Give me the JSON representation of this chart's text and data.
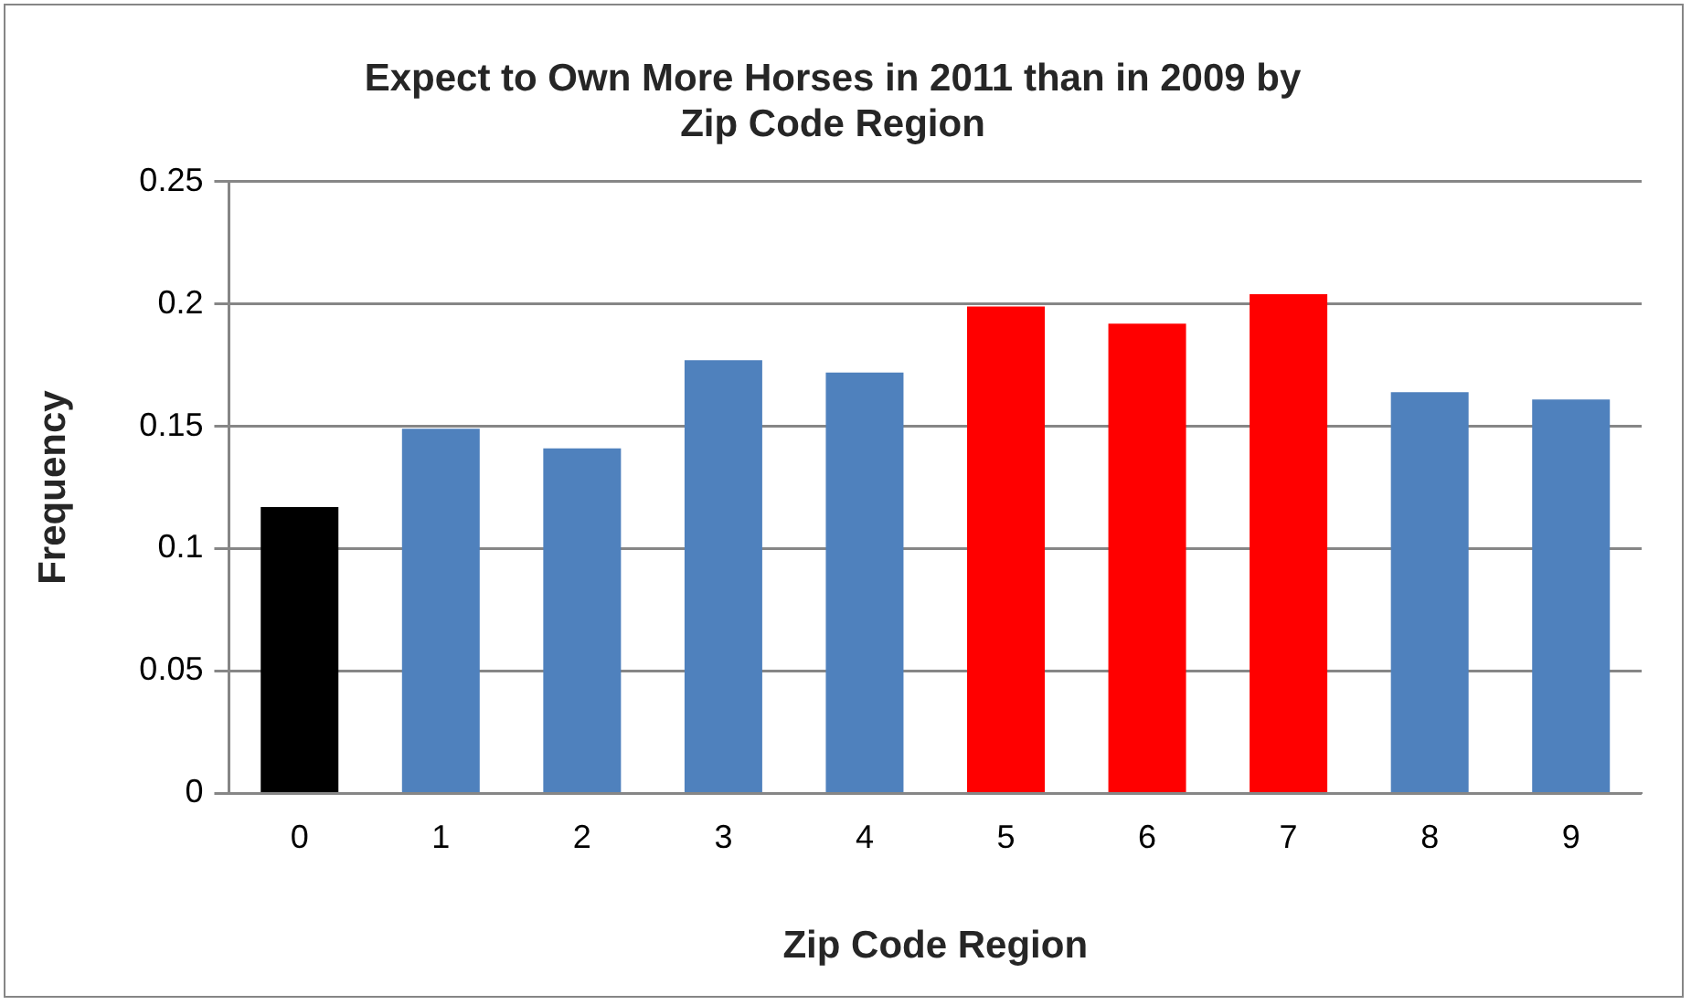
{
  "chart_data": {
    "type": "bar",
    "title": "Expect to Own More Horses in 2011 than in 2009 by Zip Code Region",
    "xlabel": "Zip Code Region",
    "ylabel": "Frequency",
    "categories": [
      "0",
      "1",
      "2",
      "3",
      "4",
      "5",
      "6",
      "7",
      "8",
      "9"
    ],
    "values": [
      0.117,
      0.149,
      0.141,
      0.177,
      0.172,
      0.199,
      0.192,
      0.204,
      0.164,
      0.161
    ],
    "colors": [
      "#000000",
      "#4f81bd",
      "#4f81bd",
      "#4f81bd",
      "#4f81bd",
      "#ff0000",
      "#ff0000",
      "#ff0000",
      "#4f81bd",
      "#4f81bd"
    ],
    "ylim": [
      0,
      0.25
    ],
    "yticks": [
      0,
      0.05,
      0.1,
      0.15,
      0.2,
      0.25
    ],
    "grid": "y",
    "legend": false
  }
}
